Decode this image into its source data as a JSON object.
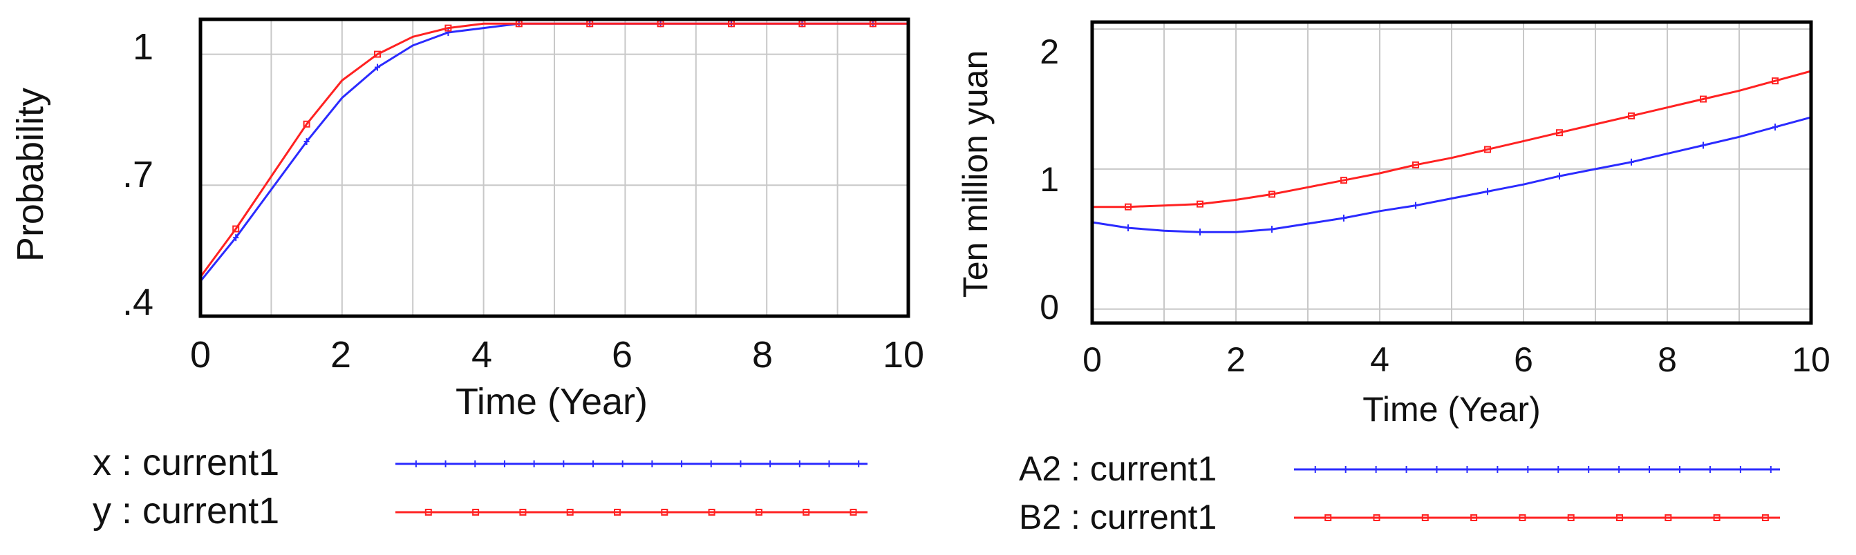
{
  "chart_data": [
    {
      "type": "line",
      "title": "",
      "xlabel": "Time (Year)",
      "ylabel": "Probability",
      "xlim": [
        0,
        10
      ],
      "ylim": [
        0.4,
        1.08
      ],
      "x_ticks": [
        0,
        2,
        4,
        6,
        8,
        10
      ],
      "x_tick_labels": [
        "0",
        "2",
        "4",
        "6",
        "8",
        "10"
      ],
      "y_ticks": [
        0.4,
        0.7,
        1.0
      ],
      "y_tick_labels": [
        ".4",
        ".7",
        "1"
      ],
      "grid": true,
      "legend_position": "bottom",
      "series": [
        {
          "name": "x : current1",
          "color": "#2b2bff",
          "marker": "plus",
          "x": [
            0,
            0.5,
            1,
            1.5,
            2,
            2.5,
            3,
            3.5,
            4,
            4.5,
            5,
            5.5,
            6,
            6.5,
            7,
            7.5,
            8,
            8.5,
            9,
            9.5,
            10
          ],
          "y": [
            0.48,
            0.58,
            0.69,
            0.8,
            0.9,
            0.97,
            1.02,
            1.05,
            1.06,
            1.07,
            1.07,
            1.07,
            1.07,
            1.07,
            1.07,
            1.07,
            1.07,
            1.07,
            1.07,
            1.07,
            1.07
          ]
        },
        {
          "name": "y : current1",
          "color": "#ff2222",
          "marker": "square",
          "x": [
            0,
            0.5,
            1,
            1.5,
            2,
            2.5,
            3,
            3.5,
            4,
            4.5,
            5,
            5.5,
            6,
            6.5,
            7,
            7.5,
            8,
            8.5,
            9,
            9.5,
            10
          ],
          "y": [
            0.49,
            0.6,
            0.72,
            0.84,
            0.94,
            1.0,
            1.04,
            1.06,
            1.07,
            1.07,
            1.07,
            1.07,
            1.07,
            1.07,
            1.07,
            1.07,
            1.07,
            1.07,
            1.07,
            1.07,
            1.07
          ]
        }
      ]
    },
    {
      "type": "line",
      "title": "",
      "xlabel": "Time (Year)",
      "ylabel": "Ten million yuan",
      "xlim": [
        0,
        10
      ],
      "ylim": [
        -0.1,
        2.05
      ],
      "x_ticks": [
        0,
        2,
        4,
        6,
        8,
        10
      ],
      "x_tick_labels": [
        "0",
        "2",
        "4",
        "6",
        "8",
        "10"
      ],
      "y_ticks": [
        0,
        1,
        2
      ],
      "y_tick_labels": [
        "0",
        "1",
        "2"
      ],
      "grid": true,
      "legend_position": "bottom",
      "series": [
        {
          "name": "A2 : current1",
          "color": "#2b2bff",
          "marker": "plus",
          "x": [
            0,
            0.5,
            1,
            1.5,
            2,
            2.5,
            3,
            3.5,
            4,
            4.5,
            5,
            5.5,
            6,
            6.5,
            7,
            7.5,
            8,
            8.5,
            9,
            9.5,
            10
          ],
          "y": [
            0.62,
            0.58,
            0.56,
            0.55,
            0.55,
            0.57,
            0.61,
            0.65,
            0.7,
            0.74,
            0.79,
            0.84,
            0.89,
            0.95,
            1.0,
            1.05,
            1.11,
            1.17,
            1.23,
            1.3,
            1.37
          ]
        },
        {
          "name": "B2 : current1",
          "color": "#ff2222",
          "marker": "square",
          "x": [
            0,
            0.5,
            1,
            1.5,
            2,
            2.5,
            3,
            3.5,
            4,
            4.5,
            5,
            5.5,
            6,
            6.5,
            7,
            7.5,
            8,
            8.5,
            9,
            9.5,
            10
          ],
          "y": [
            0.73,
            0.73,
            0.74,
            0.75,
            0.78,
            0.82,
            0.87,
            0.92,
            0.97,
            1.03,
            1.08,
            1.14,
            1.2,
            1.26,
            1.32,
            1.38,
            1.44,
            1.5,
            1.56,
            1.63,
            1.7
          ]
        }
      ]
    }
  ]
}
